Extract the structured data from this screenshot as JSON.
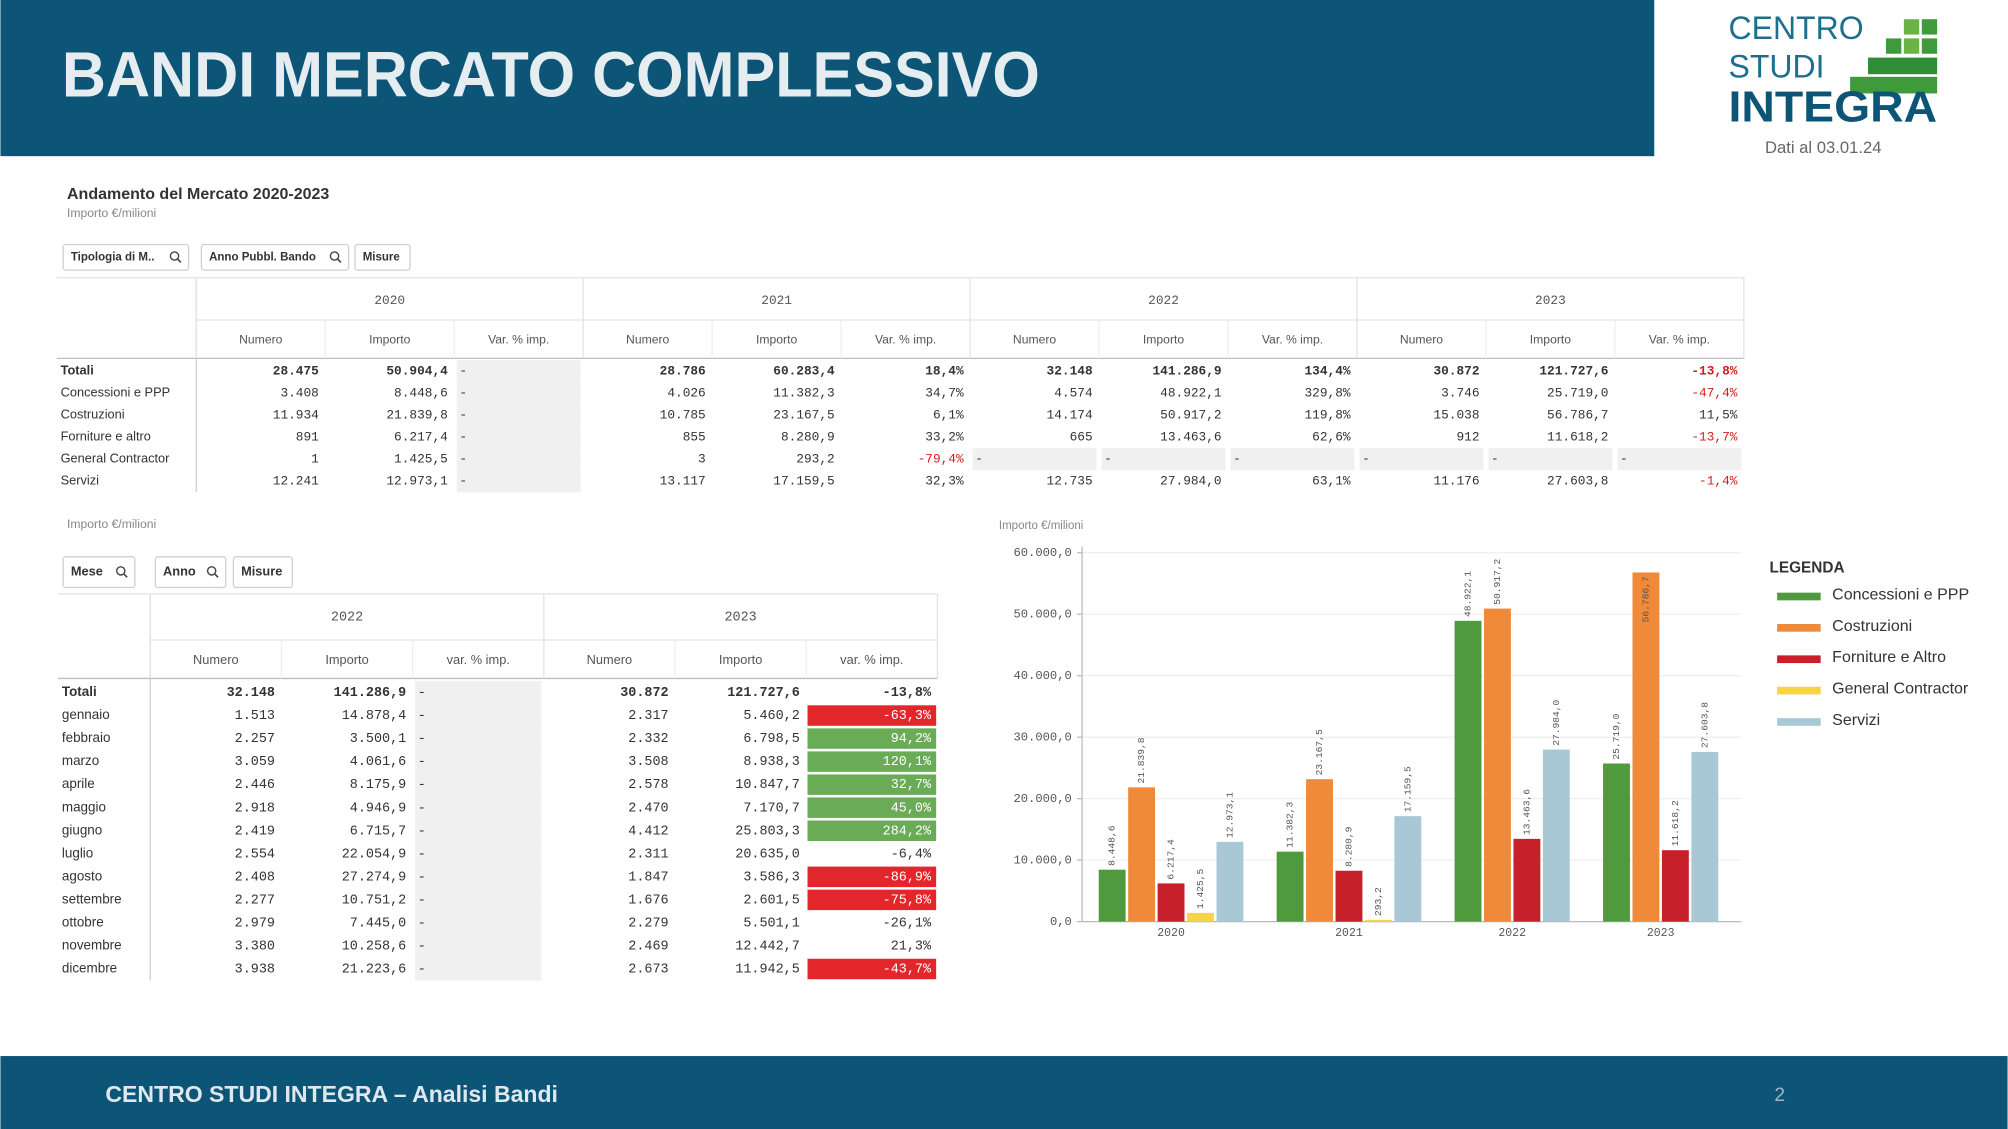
{
  "header": {
    "title": "BANDI MERCATO COMPLESSIVO",
    "logo": [
      "CENTRO",
      "STUDI",
      "INTEGRA"
    ],
    "date": "Dati al 03.01.24"
  },
  "footer": {
    "text": "CENTRO STUDI INTEGRA – Analisi Bandi",
    "page": "2"
  },
  "table1": {
    "title": "Andamento del Mercato 2020-2023",
    "subtitle": "Importo €/milioni",
    "filters": [
      "Tipologia di M..",
      "Anno Pubbl. Bando",
      "Misure"
    ],
    "years": [
      "2020",
      "2021",
      "2022",
      "2023"
    ],
    "columns": [
      "Numero",
      "Importo",
      "Var. % imp."
    ],
    "rows": [
      {
        "label": "Totali",
        "cells": [
          "28.475",
          "50.904,4",
          "-",
          "28.786",
          "60.283,4",
          "18,4%",
          "32.148",
          "141.286,9",
          "134,4%",
          "30.872",
          "121.727,6",
          "-13,8%"
        ]
      },
      {
        "label": "Concessioni e PPP",
        "cells": [
          "3.408",
          "8.448,6",
          "-",
          "4.026",
          "11.382,3",
          "34,7%",
          "4.574",
          "48.922,1",
          "329,8%",
          "3.746",
          "25.719,0",
          "-47,4%"
        ]
      },
      {
        "label": "Costruzioni",
        "cells": [
          "11.934",
          "21.839,8",
          "-",
          "10.785",
          "23.167,5",
          "6,1%",
          "14.174",
          "50.917,2",
          "119,8%",
          "15.038",
          "56.786,7",
          "11,5%"
        ]
      },
      {
        "label": "Forniture e altro",
        "cells": [
          "891",
          "6.217,4",
          "-",
          "855",
          "8.280,9",
          "33,2%",
          "665",
          "13.463,6",
          "62,6%",
          "912",
          "11.618,2",
          "-13,7%"
        ]
      },
      {
        "label": "General Contractor",
        "cells": [
          "1",
          "1.425,5",
          "-",
          "3",
          "293,2",
          "-79,4%",
          "-",
          "-",
          "-",
          "-",
          "-",
          "-"
        ]
      },
      {
        "label": "Servizi",
        "cells": [
          "12.241",
          "12.973,1",
          "-",
          "13.117",
          "17.159,5",
          "32,3%",
          "12.735",
          "27.984,0",
          "63,1%",
          "11.176",
          "27.603,8",
          "-1,4%"
        ]
      }
    ]
  },
  "table2": {
    "subtitle": "Importo €/milioni",
    "filters": [
      "Mese",
      "Anno",
      "Misure"
    ],
    "years": [
      "2022",
      "2023"
    ],
    "columns": [
      "Numero",
      "Importo",
      "var. % imp."
    ],
    "rows": [
      {
        "label": "Totali",
        "cells": [
          "32.148",
          "141.286,9",
          "-",
          "30.872",
          "121.727,6",
          "-13,8%"
        ],
        "highlight": null
      },
      {
        "label": "gennaio",
        "cells": [
          "1.513",
          "14.878,4",
          "-",
          "2.317",
          "5.460,2",
          "-63,3%"
        ],
        "highlight": "#e3262b"
      },
      {
        "label": "febbraio",
        "cells": [
          "2.257",
          "3.500,1",
          "-",
          "2.332",
          "6.798,5",
          "94,2%"
        ],
        "highlight": "#6aab55"
      },
      {
        "label": "marzo",
        "cells": [
          "3.059",
          "4.061,6",
          "-",
          "3.508",
          "8.938,3",
          "120,1%"
        ],
        "highlight": "#6aab55"
      },
      {
        "label": "aprile",
        "cells": [
          "2.446",
          "8.175,9",
          "-",
          "2.578",
          "10.847,7",
          "32,7%"
        ],
        "highlight": "#6aab55"
      },
      {
        "label": "maggio",
        "cells": [
          "2.918",
          "4.946,9",
          "-",
          "2.470",
          "7.170,7",
          "45,0%"
        ],
        "highlight": "#6aab55"
      },
      {
        "label": "giugno",
        "cells": [
          "2.419",
          "6.715,7",
          "-",
          "4.412",
          "25.803,3",
          "284,2%"
        ],
        "highlight": "#6aab55"
      },
      {
        "label": "luglio",
        "cells": [
          "2.554",
          "22.054,9",
          "-",
          "2.311",
          "20.635,0",
          "-6,4%"
        ],
        "highlight": null
      },
      {
        "label": "agosto",
        "cells": [
          "2.408",
          "27.274,9",
          "-",
          "1.847",
          "3.586,3",
          "-86,9%"
        ],
        "highlight": "#e3262b"
      },
      {
        "label": "settembre",
        "cells": [
          "2.277",
          "10.751,2",
          "-",
          "1.676",
          "2.601,5",
          "-75,8%"
        ],
        "highlight": "#e3262b"
      },
      {
        "label": "ottobre",
        "cells": [
          "2.979",
          "7.445,0",
          "-",
          "2.279",
          "5.501,1",
          "-26,1%"
        ],
        "highlight": null
      },
      {
        "label": "novembre",
        "cells": [
          "3.380",
          "10.258,6",
          "-",
          "2.469",
          "12.442,7",
          "21,3%"
        ],
        "highlight": null
      },
      {
        "label": "dicembre",
        "cells": [
          "3.938",
          "21.223,6",
          "-",
          "2.673",
          "11.942,5",
          "-43,7%"
        ],
        "highlight": "#e3262b"
      }
    ]
  },
  "chart_data": {
    "type": "bar",
    "y_label": "Importo €/milioni",
    "categories": [
      "2020",
      "2021",
      "2022",
      "2023"
    ],
    "series": [
      {
        "name": "Concessioni e PPP",
        "color": "#4f9a3d",
        "values": [
          8448.6,
          11382.3,
          48922.1,
          25719.0
        ],
        "value_labels": [
          "8.448,6",
          "11.382,3",
          "48.922,1",
          "25.719,0"
        ]
      },
      {
        "name": "Costruzioni",
        "color": "#ee8a3a",
        "values": [
          21839.8,
          23167.5,
          50917.2,
          56786.7
        ],
        "value_labels": [
          "21.839,8",
          "23.167,5",
          "50.917,2",
          "56.786,7"
        ]
      },
      {
        "name": "Forniture e Altro",
        "color": "#c8202b",
        "values": [
          6217.4,
          8280.9,
          13463.6,
          11618.2
        ],
        "value_labels": [
          "6.217,4",
          "8.280,9",
          "13.463,6",
          "11.618,2"
        ]
      },
      {
        "name": "General Contractor",
        "color": "#f6d443",
        "values": [
          1425.5,
          293.2,
          null,
          null
        ],
        "value_labels": [
          "1.425,5",
          "293,2",
          null,
          null
        ]
      },
      {
        "name": "Servizi",
        "color": "#a8c8d5",
        "values": [
          12973.1,
          17159.5,
          27984.0,
          27603.8
        ],
        "value_labels": [
          "12.973,1",
          "17.159,5",
          "27.984,0",
          "27.603,8"
        ]
      }
    ],
    "ylim": [
      0,
      61000
    ],
    "yticks": [
      {
        "value": 0,
        "label": "0,0"
      },
      {
        "value": 10000,
        "label": "10.000,0"
      },
      {
        "value": 20000,
        "label": "20.000,0"
      },
      {
        "value": 30000,
        "label": "30.000,0"
      },
      {
        "value": 40000,
        "label": "40.000,0"
      },
      {
        "value": 50000,
        "label": "50.000,0"
      },
      {
        "value": 60000,
        "label": "60.000,0"
      }
    ],
    "grid": true,
    "legend_title": "LEGENDA",
    "legend": "right"
  }
}
